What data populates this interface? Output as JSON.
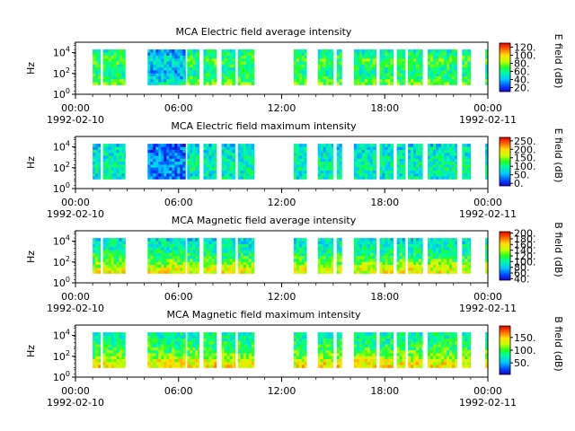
{
  "chart_data": [
    {
      "type": "heatmap",
      "title": "MCA  Electric field average intensity",
      "ylabel": "Hz",
      "y_scale": "log",
      "ylim": [
        1,
        100000
      ],
      "y_ticks": [
        {
          "value": 1,
          "base": "10",
          "exp": "0"
        },
        {
          "value": 100,
          "base": "10",
          "exp": "2"
        },
        {
          "value": 10000,
          "base": "10",
          "exp": "4"
        }
      ],
      "x_range": [
        "1992-02-10 00:00",
        "1992-02-11 00:00"
      ],
      "x_ticks": [
        {
          "hour": 0,
          "label": "00:00",
          "date": "1992-02-10"
        },
        {
          "hour": 6,
          "label": "06:00",
          "date": ""
        },
        {
          "hour": 12,
          "label": "12:00",
          "date": ""
        },
        {
          "hour": 18,
          "label": "18:00",
          "date": ""
        },
        {
          "hour": 24,
          "label": "00:00",
          "date": "1992-02-11"
        }
      ],
      "colorbar": {
        "label": "E field (dB)",
        "min": 10,
        "max": 130,
        "ticks": [
          20,
          40,
          60,
          80,
          100,
          120
        ],
        "tick_labels": [
          "20.",
          "40.",
          "60.",
          "80.",
          "100.",
          "120."
        ]
      },
      "data_intervals_hours": [
        [
          1.0,
          1.45
        ],
        [
          1.6,
          2.9
        ],
        [
          4.2,
          6.4
        ],
        [
          6.5,
          7.2
        ],
        [
          7.45,
          8.2
        ],
        [
          8.5,
          9.3
        ],
        [
          9.45,
          10.4
        ],
        [
          12.7,
          13.45
        ],
        [
          14.1,
          15.0
        ],
        [
          15.2,
          15.5
        ],
        [
          16.2,
          17.5
        ],
        [
          17.7,
          18.5
        ],
        [
          18.7,
          19.2
        ],
        [
          19.35,
          20.2
        ],
        [
          20.5,
          22.2
        ],
        [
          22.5,
          23.0
        ],
        [
          23.85,
          24.0
        ]
      ],
      "bands_hz": [
        8,
        20000
      ],
      "palette": "rainbow"
    },
    {
      "type": "heatmap",
      "title": "MCA  Electric field maximum intensity",
      "ylabel": "Hz",
      "y_scale": "log",
      "ylim": [
        1,
        100000
      ],
      "y_ticks": [
        {
          "value": 1,
          "base": "10",
          "exp": "0"
        },
        {
          "value": 100,
          "base": "10",
          "exp": "2"
        },
        {
          "value": 10000,
          "base": "10",
          "exp": "4"
        }
      ],
      "x_range": [
        "1992-02-10 00:00",
        "1992-02-11 00:00"
      ],
      "x_ticks": [
        {
          "hour": 0,
          "label": "00:00",
          "date": "1992-02-10"
        },
        {
          "hour": 6,
          "label": "06:00",
          "date": ""
        },
        {
          "hour": 12,
          "label": "12:00",
          "date": ""
        },
        {
          "hour": 18,
          "label": "18:00",
          "date": ""
        },
        {
          "hour": 24,
          "label": "00:00",
          "date": "1992-02-11"
        }
      ],
      "colorbar": {
        "label": "E field (dB)",
        "min": -15,
        "max": 270,
        "ticks": [
          0,
          50,
          100,
          150,
          200,
          250
        ],
        "tick_labels": [
          "0.",
          "50.",
          "100.",
          "150.",
          "200.",
          "250."
        ]
      },
      "data_intervals_hours": [
        [
          1.0,
          1.45
        ],
        [
          1.6,
          2.9
        ],
        [
          4.2,
          6.4
        ],
        [
          6.5,
          7.2
        ],
        [
          7.45,
          8.2
        ],
        [
          8.5,
          9.3
        ],
        [
          9.45,
          10.4
        ],
        [
          12.7,
          13.45
        ],
        [
          14.1,
          15.0
        ],
        [
          15.2,
          15.5
        ],
        [
          16.2,
          17.5
        ],
        [
          17.7,
          18.5
        ],
        [
          18.7,
          19.2
        ],
        [
          19.35,
          20.2
        ],
        [
          20.5,
          22.2
        ],
        [
          22.5,
          23.0
        ],
        [
          23.85,
          24.0
        ]
      ],
      "bands_hz": [
        8,
        20000
      ],
      "palette": "rainbow"
    },
    {
      "type": "heatmap",
      "title": "MCA  Magnetic field average intensity",
      "ylabel": "Hz",
      "y_scale": "log",
      "ylim": [
        1,
        100000
      ],
      "y_ticks": [
        {
          "value": 1,
          "base": "10",
          "exp": "0"
        },
        {
          "value": 100,
          "base": "10",
          "exp": "2"
        },
        {
          "value": 10000,
          "base": "10",
          "exp": "4"
        }
      ],
      "x_range": [
        "1992-02-10 00:00",
        "1992-02-11 00:00"
      ],
      "x_ticks": [
        {
          "hour": 0,
          "label": "00:00",
          "date": "1992-02-10"
        },
        {
          "hour": 6,
          "label": "06:00",
          "date": ""
        },
        {
          "hour": 12,
          "label": "12:00",
          "date": ""
        },
        {
          "hour": 18,
          "label": "18:00",
          "date": ""
        },
        {
          "hour": 24,
          "label": "00:00",
          "date": "1992-02-11"
        }
      ],
      "colorbar": {
        "label": "B field (dB)",
        "min": 35,
        "max": 205,
        "ticks": [
          40,
          60,
          80,
          100,
          120,
          140,
          160,
          180,
          200
        ],
        "tick_labels": [
          "40.",
          "60.",
          "80.",
          "100.",
          "120.",
          "140.",
          "160.",
          "180.",
          "200."
        ]
      },
      "data_intervals_hours": [
        [
          1.0,
          1.45
        ],
        [
          1.6,
          2.9
        ],
        [
          4.2,
          6.4
        ],
        [
          6.5,
          7.2
        ],
        [
          7.45,
          8.2
        ],
        [
          8.5,
          9.3
        ],
        [
          9.45,
          10.4
        ],
        [
          12.7,
          13.45
        ],
        [
          14.1,
          15.0
        ],
        [
          15.2,
          15.5
        ],
        [
          16.2,
          17.5
        ],
        [
          17.7,
          18.5
        ],
        [
          18.7,
          19.2
        ],
        [
          19.35,
          20.2
        ],
        [
          20.5,
          22.2
        ],
        [
          22.5,
          23.0
        ],
        [
          23.85,
          24.0
        ]
      ],
      "bands_hz": [
        8,
        20000
      ],
      "palette": "rainbow"
    },
    {
      "type": "heatmap",
      "title": "MCA  Magnetic field maximum intensity",
      "ylabel": "Hz",
      "y_scale": "log",
      "ylim": [
        1,
        100000
      ],
      "y_ticks": [
        {
          "value": 1,
          "base": "10",
          "exp": "0"
        },
        {
          "value": 100,
          "base": "10",
          "exp": "2"
        },
        {
          "value": 10000,
          "base": "10",
          "exp": "4"
        }
      ],
      "x_range": [
        "1992-02-10 00:00",
        "1992-02-11 00:00"
      ],
      "x_ticks": [
        {
          "hour": 0,
          "label": "00:00",
          "date": "1992-02-10"
        },
        {
          "hour": 6,
          "label": "06:00",
          "date": ""
        },
        {
          "hour": 12,
          "label": "12:00",
          "date": ""
        },
        {
          "hour": 18,
          "label": "18:00",
          "date": ""
        },
        {
          "hour": 24,
          "label": "00:00",
          "date": "1992-02-11"
        }
      ],
      "colorbar": {
        "label": "B field (dB)",
        "min": 5,
        "max": 195,
        "ticks": [
          50,
          100,
          150
        ],
        "tick_labels": [
          "50.",
          "100.",
          "150."
        ]
      },
      "data_intervals_hours": [
        [
          1.0,
          1.45
        ],
        [
          1.6,
          2.9
        ],
        [
          4.2,
          6.4
        ],
        [
          6.5,
          7.2
        ],
        [
          7.45,
          8.2
        ],
        [
          8.5,
          9.3
        ],
        [
          9.45,
          10.4
        ],
        [
          12.7,
          13.45
        ],
        [
          14.1,
          15.0
        ],
        [
          15.2,
          15.5
        ],
        [
          16.2,
          17.5
        ],
        [
          17.7,
          18.5
        ],
        [
          18.7,
          19.2
        ],
        [
          19.35,
          20.2
        ],
        [
          20.5,
          22.2
        ],
        [
          22.5,
          23.0
        ],
        [
          23.85,
          24.0
        ]
      ],
      "bands_hz": [
        8,
        20000
      ],
      "palette": "rainbow"
    }
  ]
}
